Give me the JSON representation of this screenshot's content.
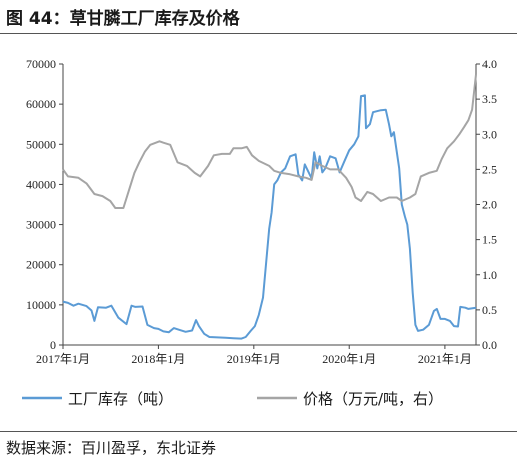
{
  "figure": {
    "title": "图 44：草甘膦工厂库存及价格",
    "source": "数据来源：百川盈孚，东北证券"
  },
  "chart_data": {
    "type": "line",
    "x_ticks": [
      "2017年1月",
      "2018年1月",
      "2019年1月",
      "2020年1月",
      "2021年1月"
    ],
    "x_range": [
      "2017-01-01",
      "2021-04-30"
    ],
    "y_left": {
      "range": [
        0,
        70000
      ],
      "ticks": [
        "0",
        "10000",
        "20000",
        "30000",
        "40000",
        "50000",
        "60000",
        "70000"
      ]
    },
    "y_right": {
      "range": [
        0,
        4.0
      ],
      "ticks": [
        "0.0",
        "0.5",
        "1.0",
        "1.5",
        "2.0",
        "2.5",
        "3.0",
        "3.5",
        "4.0"
      ]
    },
    "grid": false,
    "legend_position": "bottom",
    "series": [
      {
        "name": "工厂库存（吨）",
        "axis": "left",
        "color": "#5b9bd5",
        "points": [
          [
            "2017-01-01",
            10800
          ],
          [
            "2017-01-20",
            10500
          ],
          [
            "2017-02-10",
            9800
          ],
          [
            "2017-03-01",
            10300
          ],
          [
            "2017-04-01",
            9700
          ],
          [
            "2017-04-20",
            8600
          ],
          [
            "2017-05-01",
            6000
          ],
          [
            "2017-05-15",
            9400
          ],
          [
            "2017-06-15",
            9300
          ],
          [
            "2017-07-05",
            9800
          ],
          [
            "2017-08-01",
            6800
          ],
          [
            "2017-09-01",
            5200
          ],
          [
            "2017-09-20",
            9800
          ],
          [
            "2017-10-05",
            9500
          ],
          [
            "2017-11-01",
            9600
          ],
          [
            "2017-11-20",
            5000
          ],
          [
            "2017-12-15",
            4200
          ],
          [
            "2018-01-01",
            4000
          ],
          [
            "2018-01-20",
            3400
          ],
          [
            "2018-02-10",
            3200
          ],
          [
            "2018-03-01",
            4200
          ],
          [
            "2018-03-20",
            3800
          ],
          [
            "2018-04-15",
            3300
          ],
          [
            "2018-05-10",
            3600
          ],
          [
            "2018-05-25",
            6200
          ],
          [
            "2018-06-05",
            4700
          ],
          [
            "2018-06-25",
            2800
          ],
          [
            "2018-07-15",
            2000
          ],
          [
            "2018-08-15",
            1900
          ],
          [
            "2018-09-15",
            1800
          ],
          [
            "2018-10-15",
            1700
          ],
          [
            "2018-11-15",
            1600
          ],
          [
            "2018-12-01",
            2000
          ],
          [
            "2018-12-20",
            3500
          ],
          [
            "2019-01-05",
            4700
          ],
          [
            "2019-01-20",
            7500
          ],
          [
            "2019-02-05",
            11800
          ],
          [
            "2019-02-15",
            19000
          ],
          [
            "2019-03-01",
            29000
          ],
          [
            "2019-03-10",
            33000
          ],
          [
            "2019-03-20",
            40000
          ],
          [
            "2019-04-01",
            41000
          ],
          [
            "2019-04-15",
            43000
          ],
          [
            "2019-05-01",
            44000
          ],
          [
            "2019-05-20",
            47000
          ],
          [
            "2019-06-10",
            47500
          ],
          [
            "2019-06-20",
            42500
          ],
          [
            "2019-07-05",
            41000
          ],
          [
            "2019-07-15",
            45000
          ],
          [
            "2019-07-30",
            43000
          ],
          [
            "2019-08-10",
            41500
          ],
          [
            "2019-08-20",
            48000
          ],
          [
            "2019-09-01",
            44000
          ],
          [
            "2019-09-10",
            47000
          ],
          [
            "2019-09-20",
            43000
          ],
          [
            "2019-10-01",
            44000
          ],
          [
            "2019-10-20",
            47000
          ],
          [
            "2019-11-10",
            46500
          ],
          [
            "2019-11-25",
            43000
          ],
          [
            "2019-12-15",
            46000
          ],
          [
            "2020-01-01",
            48500
          ],
          [
            "2020-01-20",
            50000
          ],
          [
            "2020-02-05",
            52000
          ],
          [
            "2020-02-15",
            62000
          ],
          [
            "2020-03-01",
            62200
          ],
          [
            "2020-03-05",
            54000
          ],
          [
            "2020-03-20",
            55000
          ],
          [
            "2020-04-01",
            58000
          ],
          [
            "2020-05-01",
            58500
          ],
          [
            "2020-05-20",
            58600
          ],
          [
            "2020-06-01",
            55000
          ],
          [
            "2020-06-10",
            52000
          ],
          [
            "2020-06-20",
            53000
          ],
          [
            "2020-07-10",
            44000
          ],
          [
            "2020-07-20",
            35000
          ],
          [
            "2020-08-01",
            32000
          ],
          [
            "2020-08-10",
            30000
          ],
          [
            "2020-08-20",
            24000
          ],
          [
            "2020-08-31",
            13000
          ],
          [
            "2020-09-10",
            5000
          ],
          [
            "2020-09-20",
            3500
          ],
          [
            "2020-10-10",
            3800
          ],
          [
            "2020-11-01",
            5000
          ],
          [
            "2020-11-20",
            8500
          ],
          [
            "2020-12-01",
            9000
          ],
          [
            "2020-12-15",
            6500
          ],
          [
            "2021-01-01",
            6500
          ],
          [
            "2021-01-20",
            6000
          ],
          [
            "2021-02-05",
            4700
          ],
          [
            "2021-02-20",
            4600
          ],
          [
            "2021-03-01",
            9500
          ],
          [
            "2021-03-20",
            9300
          ],
          [
            "2021-04-01",
            9000
          ],
          [
            "2021-04-30",
            9300
          ]
        ]
      },
      {
        "name": "价格（万元/吨，右）",
        "axis": "right",
        "color": "#a5a5a5",
        "points": [
          [
            "2017-01-01",
            2.5
          ],
          [
            "2017-01-20",
            2.4
          ],
          [
            "2017-03-01",
            2.38
          ],
          [
            "2017-04-01",
            2.3
          ],
          [
            "2017-05-01",
            2.15
          ],
          [
            "2017-06-01",
            2.12
          ],
          [
            "2017-07-01",
            2.05
          ],
          [
            "2017-07-20",
            1.95
          ],
          [
            "2017-08-20",
            1.95
          ],
          [
            "2017-09-10",
            2.2
          ],
          [
            "2017-10-01",
            2.45
          ],
          [
            "2017-10-20",
            2.6
          ],
          [
            "2017-11-10",
            2.75
          ],
          [
            "2017-12-01",
            2.85
          ],
          [
            "2018-01-05",
            2.9
          ],
          [
            "2018-01-20",
            2.88
          ],
          [
            "2018-02-15",
            2.85
          ],
          [
            "2018-03-15",
            2.6
          ],
          [
            "2018-04-20",
            2.55
          ],
          [
            "2018-05-20",
            2.45
          ],
          [
            "2018-06-10",
            2.4
          ],
          [
            "2018-07-10",
            2.55
          ],
          [
            "2018-08-01",
            2.7
          ],
          [
            "2018-09-01",
            2.72
          ],
          [
            "2018-10-01",
            2.72
          ],
          [
            "2018-10-15",
            2.8
          ],
          [
            "2018-11-15",
            2.8
          ],
          [
            "2018-12-05",
            2.82
          ],
          [
            "2018-12-25",
            2.7
          ],
          [
            "2019-01-20",
            2.62
          ],
          [
            "2019-03-01",
            2.55
          ],
          [
            "2019-03-20",
            2.48
          ],
          [
            "2019-04-15",
            2.45
          ],
          [
            "2019-05-20",
            2.43
          ],
          [
            "2019-06-20",
            2.4
          ],
          [
            "2019-07-20",
            2.38
          ],
          [
            "2019-08-10",
            2.35
          ],
          [
            "2019-08-25",
            2.6
          ],
          [
            "2019-09-20",
            2.55
          ],
          [
            "2019-10-20",
            2.5
          ],
          [
            "2019-11-20",
            2.5
          ],
          [
            "2019-12-20",
            2.38
          ],
          [
            "2020-01-10",
            2.25
          ],
          [
            "2020-01-25",
            2.1
          ],
          [
            "2020-02-15",
            2.05
          ],
          [
            "2020-03-10",
            2.18
          ],
          [
            "2020-04-01",
            2.15
          ],
          [
            "2020-05-01",
            2.05
          ],
          [
            "2020-06-01",
            2.1
          ],
          [
            "2020-07-01",
            2.1
          ],
          [
            "2020-07-20",
            2.05
          ],
          [
            "2020-08-20",
            2.1
          ],
          [
            "2020-09-10",
            2.15
          ],
          [
            "2020-10-01",
            2.4
          ],
          [
            "2020-11-01",
            2.45
          ],
          [
            "2020-12-01",
            2.48
          ],
          [
            "2020-12-20",
            2.65
          ],
          [
            "2021-01-10",
            2.8
          ],
          [
            "2021-02-05",
            2.9
          ],
          [
            "2021-02-25",
            3.0
          ],
          [
            "2021-03-15",
            3.1
          ],
          [
            "2021-04-01",
            3.2
          ],
          [
            "2021-04-15",
            3.35
          ],
          [
            "2021-04-30",
            3.85
          ]
        ]
      }
    ]
  }
}
